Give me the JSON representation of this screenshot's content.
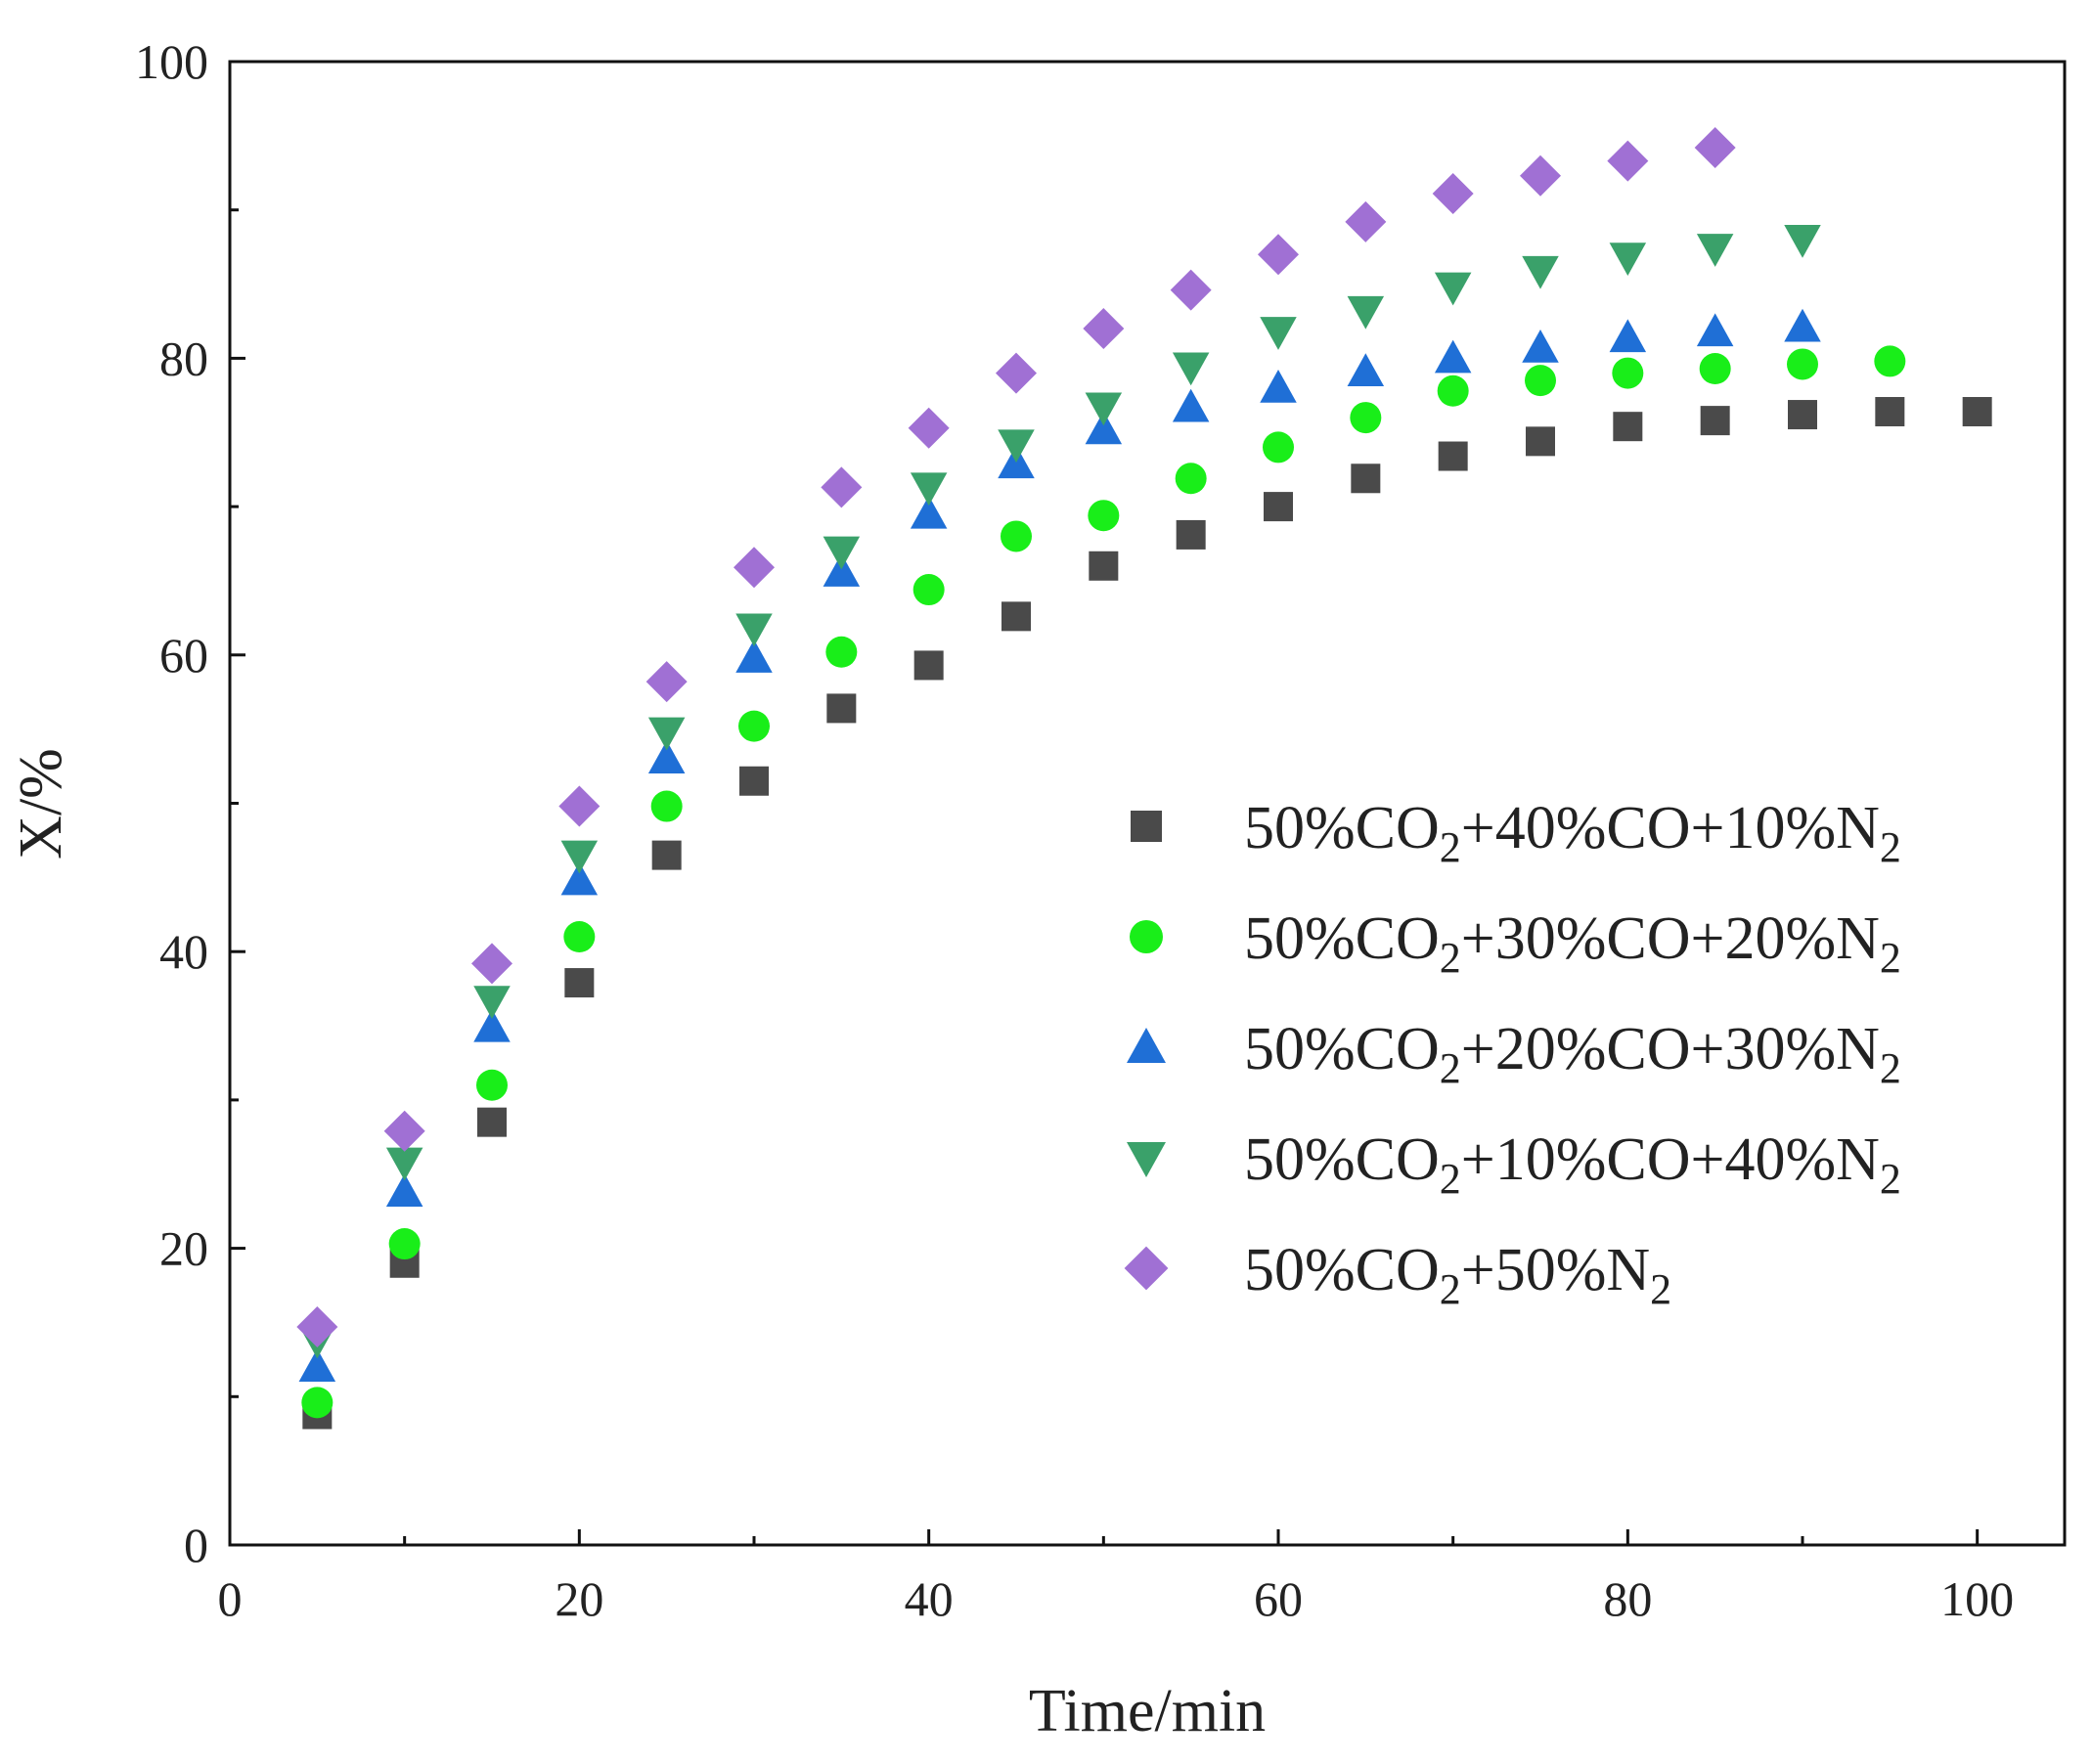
{
  "chart_data": {
    "type": "scatter",
    "title": "",
    "xlabel": "Time/min",
    "ylabel": "X/%",
    "xlim": [
      0,
      105
    ],
    "ylim": [
      0,
      100
    ],
    "xticks": [
      0,
      20,
      40,
      60,
      80,
      100
    ],
    "yticks": [
      0,
      20,
      40,
      60,
      80,
      100
    ],
    "xtick_labels": [
      "0",
      "20",
      "40",
      "60",
      "80",
      "100"
    ],
    "ytick_labels": [
      "0",
      "20",
      "40",
      "60",
      "80",
      "100"
    ],
    "grid": false,
    "legend_position": "center-right",
    "series": [
      {
        "name": "50%CO2+40%CO+10%N2",
        "label_parts": [
          [
            "50%CO",
            ""
          ],
          [
            "2",
            "sub"
          ],
          [
            "+40%CO+10%N",
            ""
          ],
          [
            "2",
            "sub"
          ]
        ],
        "marker": "square",
        "color": "#4a4a4a",
        "x": [
          5,
          10,
          15,
          20,
          25,
          30,
          35,
          40,
          45,
          50,
          55,
          60,
          65,
          70,
          75,
          80,
          85,
          90,
          95,
          100
        ],
        "y": [
          8.8,
          19.0,
          28.5,
          37.9,
          46.5,
          51.5,
          56.4,
          59.3,
          62.6,
          66.0,
          68.1,
          70.0,
          71.9,
          73.4,
          74.4,
          75.4,
          75.8,
          76.2,
          76.4,
          76.4
        ]
      },
      {
        "name": "50%CO2+30%CO+20%N2",
        "label_parts": [
          [
            "50%CO",
            ""
          ],
          [
            "2",
            "sub"
          ],
          [
            "+30%CO+20%N",
            ""
          ],
          [
            "2",
            "sub"
          ]
        ],
        "marker": "circle",
        "color": "#19ee19",
        "x": [
          5,
          10,
          15,
          20,
          25,
          30,
          35,
          40,
          45,
          50,
          55,
          60,
          65,
          70,
          75,
          80,
          85,
          90,
          95
        ],
        "y": [
          9.6,
          20.3,
          31.0,
          41.0,
          49.8,
          55.2,
          60.2,
          64.4,
          68.0,
          69.4,
          71.9,
          74.0,
          76.0,
          77.8,
          78.5,
          79.0,
          79.3,
          79.6,
          79.8
        ]
      },
      {
        "name": "50%CO2+20%CO+30%N2",
        "label_parts": [
          [
            "50%CO",
            ""
          ],
          [
            "2",
            "sub"
          ],
          [
            "+20%CO+30%N",
            ""
          ],
          [
            "2",
            "sub"
          ]
        ],
        "marker": "triangle-up",
        "color": "#1f6fd6",
        "x": [
          5,
          10,
          15,
          20,
          25,
          30,
          35,
          40,
          45,
          50,
          55,
          60,
          65,
          70,
          75,
          80,
          85,
          90
        ],
        "y": [
          12.0,
          23.8,
          34.9,
          44.8,
          53.0,
          59.8,
          65.6,
          69.5,
          72.9,
          75.2,
          76.7,
          78.0,
          79.1,
          80.0,
          80.7,
          81.4,
          81.8,
          82.1
        ]
      },
      {
        "name": "50%CO2+10%CO+40%N2",
        "label_parts": [
          [
            "50%CO",
            ""
          ],
          [
            "2",
            "sub"
          ],
          [
            "+10%CO+40%N",
            ""
          ],
          [
            "2",
            "sub"
          ]
        ],
        "marker": "triangle-down",
        "color": "#3aa16a",
        "x": [
          5,
          10,
          15,
          20,
          25,
          30,
          35,
          40,
          45,
          50,
          55,
          60,
          65,
          70,
          75,
          80,
          85,
          90
        ],
        "y": [
          13.8,
          25.8,
          36.7,
          46.5,
          54.8,
          61.8,
          67.0,
          71.3,
          74.2,
          76.7,
          79.4,
          81.8,
          83.2,
          84.8,
          85.9,
          86.8,
          87.4,
          88.0
        ]
      },
      {
        "name": "50%CO2+50%N2",
        "label_parts": [
          [
            "50%CO",
            ""
          ],
          [
            "2",
            "sub"
          ],
          [
            "+50%N",
            ""
          ],
          [
            "2",
            "sub"
          ]
        ],
        "marker": "diamond",
        "color": "#a070d4",
        "x": [
          5,
          10,
          15,
          20,
          25,
          30,
          35,
          40,
          45,
          50,
          55,
          60,
          65,
          70,
          75,
          80,
          85
        ],
        "y": [
          14.7,
          27.9,
          39.2,
          49.8,
          58.2,
          65.9,
          71.3,
          75.3,
          79.0,
          82.0,
          84.6,
          87.0,
          89.2,
          91.1,
          92.3,
          93.3,
          94.2
        ]
      }
    ]
  }
}
